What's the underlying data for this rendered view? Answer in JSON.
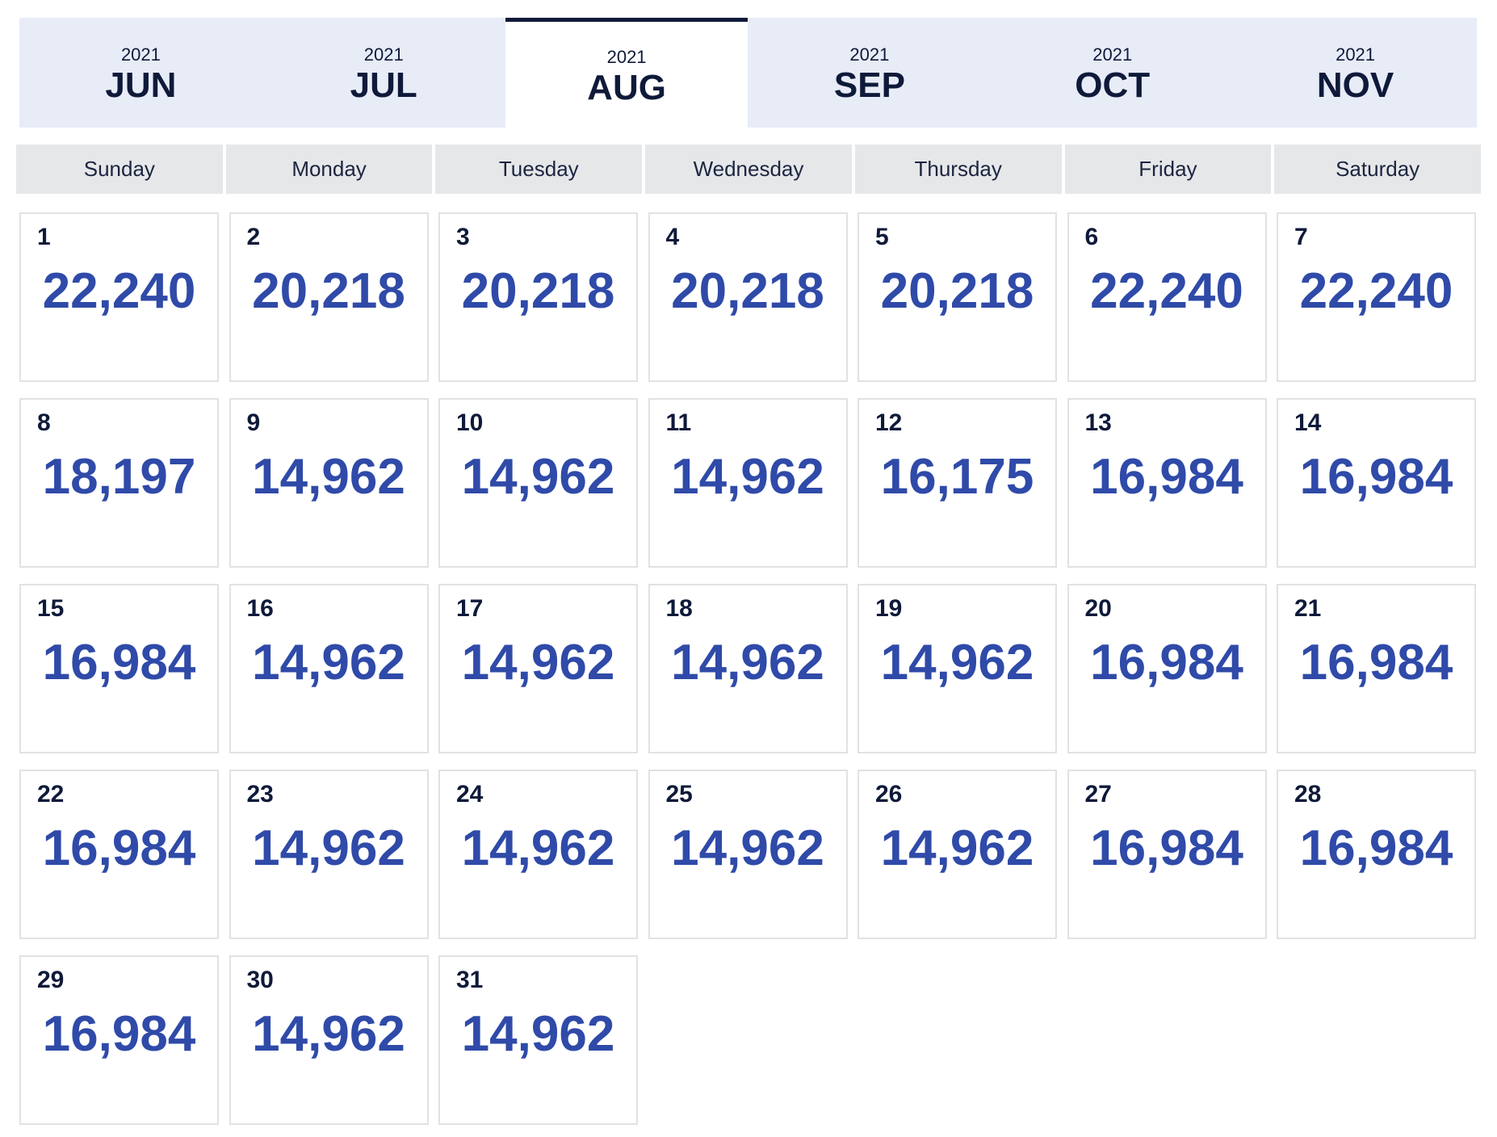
{
  "month_tabs": [
    {
      "year": "2021",
      "month": "JUN",
      "active": false
    },
    {
      "year": "2021",
      "month": "JUL",
      "active": false
    },
    {
      "year": "2021",
      "month": "AUG",
      "active": true
    },
    {
      "year": "2021",
      "month": "SEP",
      "active": false
    },
    {
      "year": "2021",
      "month": "OCT",
      "active": false
    },
    {
      "year": "2021",
      "month": "NOV",
      "active": false
    }
  ],
  "weekdays": [
    "Sunday",
    "Monday",
    "Tuesday",
    "Wednesday",
    "Thursday",
    "Friday",
    "Saturday"
  ],
  "days": [
    {
      "day": "1",
      "price": "22,240"
    },
    {
      "day": "2",
      "price": "20,218"
    },
    {
      "day": "3",
      "price": "20,218"
    },
    {
      "day": "4",
      "price": "20,218"
    },
    {
      "day": "5",
      "price": "20,218"
    },
    {
      "day": "6",
      "price": "22,240"
    },
    {
      "day": "7",
      "price": "22,240"
    },
    {
      "day": "8",
      "price": "18,197"
    },
    {
      "day": "9",
      "price": "14,962"
    },
    {
      "day": "10",
      "price": "14,962"
    },
    {
      "day": "11",
      "price": "14,962"
    },
    {
      "day": "12",
      "price": "16,175"
    },
    {
      "day": "13",
      "price": "16,984"
    },
    {
      "day": "14",
      "price": "16,984"
    },
    {
      "day": "15",
      "price": "16,984"
    },
    {
      "day": "16",
      "price": "14,962"
    },
    {
      "day": "17",
      "price": "14,962"
    },
    {
      "day": "18",
      "price": "14,962"
    },
    {
      "day": "19",
      "price": "14,962"
    },
    {
      "day": "20",
      "price": "16,984"
    },
    {
      "day": "21",
      "price": "16,984"
    },
    {
      "day": "22",
      "price": "16,984"
    },
    {
      "day": "23",
      "price": "14,962"
    },
    {
      "day": "24",
      "price": "14,962"
    },
    {
      "day": "25",
      "price": "14,962"
    },
    {
      "day": "26",
      "price": "14,962"
    },
    {
      "day": "27",
      "price": "16,984"
    },
    {
      "day": "28",
      "price": "16,984"
    },
    {
      "day": "29",
      "price": "16,984"
    },
    {
      "day": "30",
      "price": "14,962"
    },
    {
      "day": "31",
      "price": "14,962"
    }
  ],
  "colors": {
    "tab_background": "#e8ecf7",
    "active_tab_border": "#0f1a3a",
    "price_text": "#2f4aa8",
    "weekday_background": "#e6e7e9"
  }
}
